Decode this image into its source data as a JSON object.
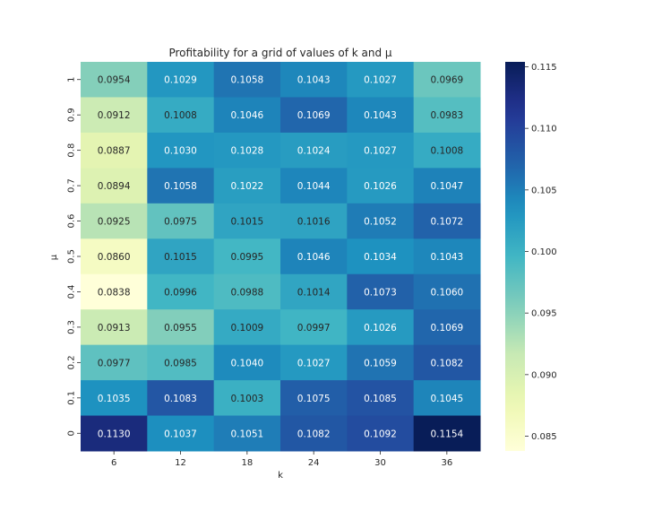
{
  "chart_data": {
    "type": "heatmap",
    "title": "Profitability for a grid of values of k and μ",
    "xlabel": "k",
    "ylabel": "μ",
    "x_categories": [
      "6",
      "12",
      "18",
      "24",
      "30",
      "36"
    ],
    "y_categories": [
      "1",
      "0.9",
      "0.8",
      "0.7",
      "0.6",
      "0.5",
      "0.4",
      "0.3",
      "0.2",
      "0.1",
      "0"
    ],
    "values": [
      [
        0.0954,
        0.1029,
        0.1058,
        0.1043,
        0.1027,
        0.0969
      ],
      [
        0.0912,
        0.1008,
        0.1046,
        0.1069,
        0.1043,
        0.0983
      ],
      [
        0.0887,
        0.103,
        0.1028,
        0.1024,
        0.1027,
        0.1008
      ],
      [
        0.0894,
        0.1058,
        0.1022,
        0.1044,
        0.1026,
        0.1047
      ],
      [
        0.0925,
        0.0975,
        0.1015,
        0.1016,
        0.1052,
        0.1072
      ],
      [
        0.086,
        0.1015,
        0.0995,
        0.1046,
        0.1034,
        0.1043
      ],
      [
        0.0838,
        0.0996,
        0.0988,
        0.1014,
        0.1073,
        0.106
      ],
      [
        0.0913,
        0.0955,
        0.1009,
        0.0997,
        0.1026,
        0.1069
      ],
      [
        0.0977,
        0.0985,
        0.104,
        0.1027,
        0.1059,
        0.1082
      ],
      [
        0.1035,
        0.1083,
        0.1003,
        0.1075,
        0.1085,
        0.1045
      ],
      [
        0.113,
        0.1037,
        0.1051,
        0.1082,
        0.1092,
        0.1154
      ]
    ],
    "value_range": [
      0.0838,
      0.1154
    ],
    "colormap": "YlGnBu",
    "colorbar_ticks": [
      "0.085",
      "0.090",
      "0.095",
      "0.100",
      "0.105",
      "0.110",
      "0.115"
    ],
    "colorbar_tick_values": [
      0.085,
      0.09,
      0.095,
      0.1,
      0.105,
      0.11,
      0.115
    ],
    "grid": false,
    "legend": "colorbar-right"
  }
}
